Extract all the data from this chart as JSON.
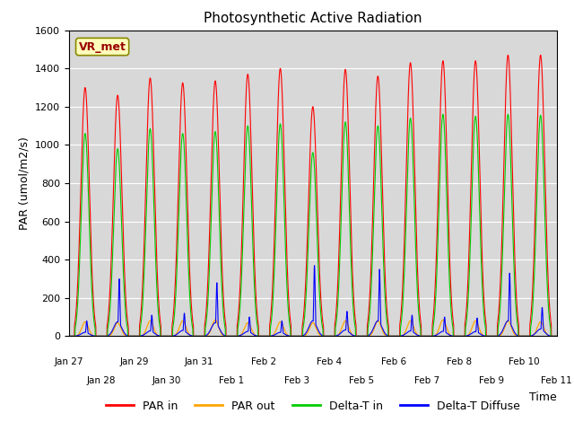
{
  "title": "Photosynthetic Active Radiation",
  "ylabel": "PAR (umol/m2/s)",
  "xlabel": "Time",
  "annotation": "VR_met",
  "ylim": [
    0,
    1600
  ],
  "facecolor": "#d8d8d8",
  "line_colors": {
    "PAR in": "#ff0000",
    "PAR out": "#ffa500",
    "Delta-T in": "#00cc00",
    "Delta-T Diffuse": "#0000ff"
  },
  "xtick_labels": [
    "Jan 27",
    "Jan 28",
    "Jan 29",
    "Jan 30",
    "Jan 31",
    "Feb 1",
    "Feb 2",
    "Feb 3",
    "Feb 4",
    "Feb 5",
    "Feb 6",
    "Feb 7",
    "Feb 8",
    "Feb 9",
    "Feb 10",
    "Feb 11"
  ],
  "days": 15,
  "peak_par_in": [
    1300,
    1260,
    1350,
    1325,
    1335,
    1370,
    1400,
    1200,
    1395,
    1360,
    1430,
    1440,
    1440,
    1470,
    1470
  ],
  "peak_par_out": [
    75,
    70,
    80,
    80,
    85,
    70,
    75,
    70,
    80,
    80,
    80,
    85,
    80,
    80,
    75
  ],
  "peak_delta_in": [
    1060,
    980,
    1085,
    1060,
    1070,
    1100,
    1110,
    960,
    1120,
    1100,
    1140,
    1160,
    1150,
    1160,
    1155
  ],
  "peak_delta_diff": [
    80,
    300,
    110,
    120,
    280,
    100,
    80,
    370,
    130,
    350,
    110,
    100,
    95,
    330,
    150
  ],
  "ytick_labels": [
    "0",
    "200",
    "400",
    "600",
    "800",
    "1000",
    "1200",
    "1400",
    "1600"
  ]
}
